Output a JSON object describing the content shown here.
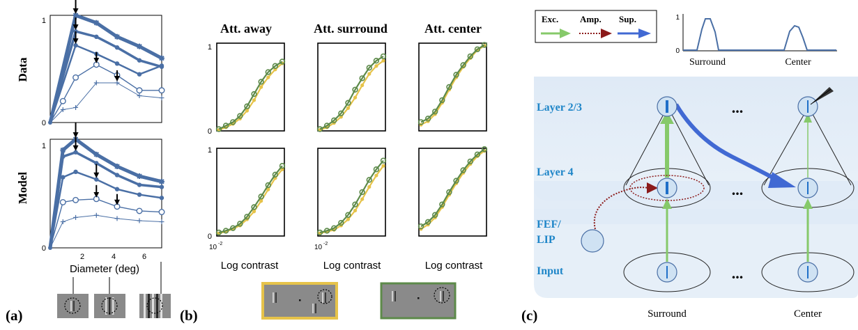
{
  "colors": {
    "blue": "#4a6fa5",
    "blue_light": "#cfe2f3",
    "panel_bg": "#dce9f6",
    "green": "#5d8a4a",
    "yellow": "#e6c34a",
    "arrow_green": "#86c96a",
    "arrow_red": "#8b1a1a",
    "arrow_blue": "#4169d3",
    "label_blue": "#1f86c8"
  },
  "panel_a": {
    "label": "(a)",
    "row_labels": [
      "Data",
      "Model"
    ],
    "y_ticks": [
      "0",
      "1"
    ],
    "x_ticks": [
      "2",
      "4",
      "6"
    ],
    "xlabel": "Diameter (deg)"
  },
  "panel_b": {
    "label": "(b)",
    "column_titles": [
      "Att. away",
      "Att. surround",
      "Att. center"
    ],
    "y_ticks": [
      "0",
      "1"
    ],
    "x_tick": "10",
    "x_tick_exp": "-2",
    "xlabel": "Log contrast"
  },
  "panel_c": {
    "label": "(c)",
    "legend": [
      "Exc.",
      "Amp.",
      "Sup."
    ],
    "inset_y_ticks": [
      "0",
      "1"
    ],
    "inset_labels": [
      "Surround",
      "Center"
    ],
    "layer_labels": [
      "Layer 2/3",
      "Layer 4",
      "FEF/",
      "LIP",
      "Input"
    ],
    "ellipsis": "...",
    "bottom_labels": [
      "Surround",
      "Center"
    ]
  },
  "chart_data": [
    {
      "type": "line",
      "title": "",
      "row": "Data",
      "xlabel": "Diameter (deg)",
      "ylim": [
        0,
        1
      ],
      "series": [
        {
          "x": [
            0,
            1.6,
            2.9,
            4.2,
            5.6,
            7
          ],
          "values": [
            0,
            1.0,
            0.93,
            0.8,
            0.71,
            0.6
          ]
        },
        {
          "x": [
            0,
            1.6,
            2.9,
            4.2,
            5.6,
            7
          ],
          "values": [
            0,
            0.85,
            0.8,
            0.7,
            0.58,
            0.52
          ]
        },
        {
          "x": [
            0,
            1.6,
            2.9,
            4.2,
            5.6,
            7
          ],
          "values": [
            0,
            0.72,
            0.64,
            0.55,
            0.45,
            0.53
          ]
        },
        {
          "x": [
            0,
            0.8,
            1.6,
            2.9,
            4.2,
            5.6,
            7
          ],
          "values": [
            0,
            0.2,
            0.42,
            0.54,
            0.44,
            0.3,
            0.3
          ]
        },
        {
          "x": [
            0,
            0.8,
            1.6,
            2.9,
            4.2,
            5.6,
            7
          ],
          "values": [
            0,
            0.12,
            0.14,
            0.37,
            0.37,
            0.25,
            0.23
          ]
        }
      ]
    },
    {
      "type": "line",
      "title": "",
      "row": "Model",
      "xlabel": "Diameter (deg)",
      "ylim": [
        0,
        1
      ],
      "series": [
        {
          "x": [
            0,
            0.8,
            1.6,
            2.9,
            4.2,
            5.6,
            7
          ],
          "values": [
            0,
            0.9,
            1.0,
            0.86,
            0.75,
            0.66,
            0.61
          ]
        },
        {
          "x": [
            0,
            0.8,
            1.6,
            2.9,
            4.2,
            5.6,
            7
          ],
          "values": [
            0,
            0.84,
            0.88,
            0.78,
            0.67,
            0.58,
            0.56
          ]
        },
        {
          "x": [
            0,
            0.8,
            1.6,
            2.9,
            4.2,
            5.6,
            7
          ],
          "values": [
            0,
            0.65,
            0.7,
            0.63,
            0.54,
            0.49,
            0.46
          ]
        },
        {
          "x": [
            0,
            0.8,
            1.6,
            2.9,
            4.2,
            5.6,
            7
          ],
          "values": [
            0,
            0.42,
            0.44,
            0.45,
            0.38,
            0.34,
            0.33
          ]
        },
        {
          "x": [
            0,
            0.8,
            1.6,
            2.9,
            4.2,
            5.6,
            7
          ],
          "values": [
            0,
            0.24,
            0.28,
            0.3,
            0.27,
            0.25,
            0.24
          ]
        }
      ]
    },
    {
      "type": "line",
      "title": "Att. away",
      "row": 1,
      "xlabel": "Log contrast",
      "ylim": [
        0,
        1
      ],
      "series": [
        {
          "x": [
            0,
            1,
            2,
            3,
            4,
            5,
            6,
            7,
            8,
            9
          ],
          "values": [
            0.02,
            0.06,
            0.1,
            0.17,
            0.28,
            0.42,
            0.56,
            0.67,
            0.74,
            0.79
          ],
          "color": "green"
        },
        {
          "x": [
            0,
            1,
            2,
            3,
            4,
            5,
            6,
            7,
            8,
            9
          ],
          "values": [
            0.01,
            0.04,
            0.08,
            0.14,
            0.23,
            0.35,
            0.5,
            0.61,
            0.7,
            0.77
          ],
          "color": "yellow"
        }
      ]
    },
    {
      "type": "line",
      "title": "Att. surround",
      "row": 1,
      "xlabel": "Log contrast",
      "ylim": [
        0,
        1
      ],
      "series": [
        {
          "x": [
            0,
            1,
            2,
            3,
            4,
            5,
            6,
            7,
            8,
            9
          ],
          "values": [
            0.02,
            0.06,
            0.12,
            0.2,
            0.32,
            0.47,
            0.6,
            0.72,
            0.8,
            0.85
          ],
          "color": "green"
        },
        {
          "x": [
            0,
            1,
            2,
            3,
            4,
            5,
            6,
            7,
            8,
            9
          ],
          "values": [
            0.01,
            0.04,
            0.09,
            0.16,
            0.26,
            0.38,
            0.52,
            0.65,
            0.74,
            0.8
          ],
          "color": "yellow"
        }
      ]
    },
    {
      "type": "line",
      "title": "Att. center",
      "row": 1,
      "xlabel": "Log contrast",
      "ylim": [
        0,
        1
      ],
      "series": [
        {
          "x": [
            0,
            1,
            2,
            3,
            4,
            5,
            6,
            7,
            8,
            9
          ],
          "values": [
            0.1,
            0.14,
            0.22,
            0.35,
            0.5,
            0.64,
            0.75,
            0.85,
            0.93,
            0.98
          ],
          "color": "green"
        },
        {
          "x": [
            0,
            1,
            2,
            3,
            4,
            5,
            6,
            7,
            8,
            9
          ],
          "values": [
            0.07,
            0.11,
            0.19,
            0.32,
            0.47,
            0.61,
            0.73,
            0.83,
            0.92,
            0.97
          ],
          "color": "yellow"
        }
      ]
    },
    {
      "type": "line",
      "title": "",
      "row": 2,
      "column": "Att. away",
      "xlabel": "Log contrast",
      "ylim": [
        0,
        1
      ],
      "series": [
        {
          "x": [
            0,
            1,
            2,
            3,
            4,
            5,
            6,
            7,
            8,
            9
          ],
          "values": [
            0.04,
            0.06,
            0.09,
            0.14,
            0.22,
            0.33,
            0.45,
            0.58,
            0.7,
            0.8
          ],
          "color": "green"
        },
        {
          "x": [
            0,
            1,
            2,
            3,
            4,
            5,
            6,
            7,
            8,
            9
          ],
          "values": [
            0.03,
            0.05,
            0.08,
            0.12,
            0.19,
            0.28,
            0.4,
            0.53,
            0.66,
            0.76
          ],
          "color": "yellow"
        }
      ]
    },
    {
      "type": "line",
      "title": "",
      "row": 2,
      "column": "Att. surround",
      "xlabel": "Log contrast",
      "ylim": [
        0,
        1
      ],
      "series": [
        {
          "x": [
            0,
            1,
            2,
            3,
            4,
            5,
            6,
            7,
            8,
            9
          ],
          "values": [
            0.04,
            0.06,
            0.09,
            0.15,
            0.24,
            0.36,
            0.5,
            0.64,
            0.76,
            0.86
          ],
          "color": "green"
        },
        {
          "x": [
            0,
            1,
            2,
            3,
            4,
            5,
            6,
            7,
            8,
            9
          ],
          "values": [
            0.03,
            0.05,
            0.07,
            0.12,
            0.19,
            0.29,
            0.42,
            0.56,
            0.69,
            0.8
          ],
          "color": "yellow"
        }
      ]
    },
    {
      "type": "line",
      "title": "",
      "row": 2,
      "column": "Att. center",
      "xlabel": "Log contrast",
      "ylim": [
        0,
        1
      ],
      "series": [
        {
          "x": [
            0,
            1,
            2,
            3,
            4,
            5,
            6,
            7,
            8,
            9
          ],
          "values": [
            0.11,
            0.16,
            0.24,
            0.36,
            0.5,
            0.63,
            0.75,
            0.85,
            0.93,
            0.99
          ],
          "color": "green"
        },
        {
          "x": [
            0,
            1,
            2,
            3,
            4,
            5,
            6,
            7,
            8,
            9
          ],
          "values": [
            0.08,
            0.13,
            0.21,
            0.33,
            0.47,
            0.6,
            0.72,
            0.82,
            0.91,
            0.97
          ],
          "color": "yellow"
        }
      ]
    }
  ]
}
